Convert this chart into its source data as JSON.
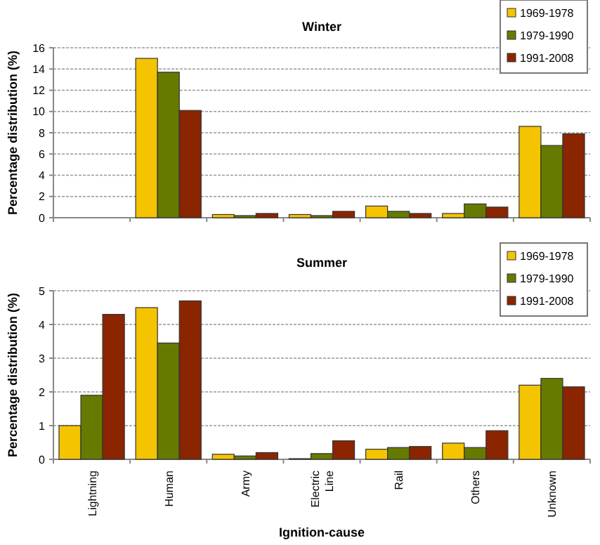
{
  "chart_data": [
    {
      "type": "bar",
      "title": "Winter",
      "ylabel": "Percentage distribution (%)",
      "categories": [
        null,
        null,
        null,
        null,
        null,
        null,
        null
      ],
      "tick_labels": "y",
      "ylim": [
        0,
        16
      ],
      "yticks": [
        0,
        2,
        4,
        6,
        8,
        10,
        12,
        14,
        16
      ],
      "grid": "y",
      "legend": "top right",
      "series": [
        {
          "name": "1969-1978",
          "color": "#f5c400",
          "values": [
            0,
            15.0,
            0.3,
            0.3,
            1.1,
            0.4,
            8.6
          ]
        },
        {
          "name": "1979-1990",
          "color": "#667a00",
          "values": [
            0,
            13.7,
            0.2,
            0.2,
            0.6,
            1.3,
            6.8
          ]
        },
        {
          "name": "1991-2008",
          "color": "#8b2500",
          "values": [
            0,
            10.1,
            0.4,
            0.6,
            0.4,
            1.0,
            7.9
          ]
        }
      ]
    },
    {
      "type": "bar",
      "title": "Summer",
      "ylabel": "Percentage distribution (%)",
      "xlabel": "Ignition-cause",
      "categories": [
        "Lightning",
        "Human",
        "Army",
        "Electric Line",
        "Rail",
        "Others",
        "Unknown"
      ],
      "ylim": [
        0,
        5
      ],
      "yticks": [
        0,
        1,
        2,
        3,
        4,
        5
      ],
      "grid": "y",
      "legend": "top right",
      "series": [
        {
          "name": "1969-1978",
          "color": "#f5c400",
          "values": [
            1.0,
            4.5,
            0.15,
            0.02,
            0.3,
            0.48,
            2.2
          ]
        },
        {
          "name": "1979-1990",
          "color": "#667a00",
          "values": [
            1.9,
            3.45,
            0.1,
            0.17,
            0.35,
            0.35,
            2.4
          ]
        },
        {
          "name": "1991-2008",
          "color": "#8b2500",
          "values": [
            4.3,
            4.7,
            0.2,
            0.55,
            0.38,
            0.85,
            2.15
          ]
        }
      ]
    }
  ]
}
